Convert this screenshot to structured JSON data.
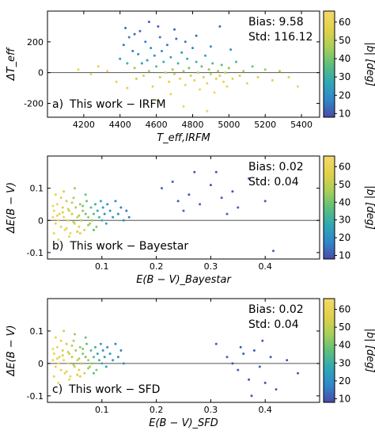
{
  "colorbar": {
    "title": "|b| [deg]",
    "range": [
      8,
      66
    ],
    "ticks": [
      10,
      20,
      30,
      40,
      50,
      60
    ],
    "colormap": [
      "#4a4aa8",
      "#2f86c9",
      "#2fa8b5",
      "#5fbf7a",
      "#a8cf57",
      "#e3d04a",
      "#f3d96b"
    ]
  },
  "chart_data": [
    {
      "type": "scatter",
      "panel_label": "a)",
      "label_text": "This work − IRFM",
      "ylabel": "ΔT_eff",
      "xlabel": "T_eff,IRFM",
      "xlim": [
        4000,
        5500
      ],
      "ylim": [
        -290,
        400
      ],
      "xticks": [
        4200,
        4400,
        4600,
        4800,
        5000,
        5200,
        5400
      ],
      "yticks": [
        -200,
        0,
        200
      ],
      "stats": {
        "bias": "Bias: 9.58",
        "std": "Std: 116.12"
      },
      "points": [
        [
          4170,
          20,
          62
        ],
        [
          4240,
          -10,
          60
        ],
        [
          4280,
          40,
          58
        ],
        [
          4330,
          10,
          61
        ],
        [
          4380,
          -60,
          57
        ],
        [
          4400,
          90,
          22
        ],
        [
          4420,
          180,
          15
        ],
        [
          4430,
          290,
          14
        ],
        [
          4440,
          60,
          30
        ],
        [
          4450,
          230,
          18
        ],
        [
          4470,
          140,
          16
        ],
        [
          4480,
          30,
          45
        ],
        [
          4490,
          -40,
          50
        ],
        [
          4500,
          120,
          19
        ],
        [
          4510,
          270,
          13
        ],
        [
          4520,
          60,
          26
        ],
        [
          4530,
          -20,
          55
        ],
        [
          4540,
          200,
          17
        ],
        [
          4550,
          80,
          24
        ],
        [
          4560,
          10,
          48
        ],
        [
          4570,
          160,
          20
        ],
        [
          4580,
          -90,
          58
        ],
        [
          4590,
          110,
          22
        ],
        [
          4600,
          40,
          35
        ],
        [
          4610,
          300,
          12
        ],
        [
          4620,
          -30,
          52
        ],
        [
          4630,
          140,
          21
        ],
        [
          4640,
          70,
          28
        ],
        [
          4650,
          0,
          50
        ],
        [
          4660,
          180,
          16
        ],
        [
          4670,
          -60,
          56
        ],
        [
          4680,
          100,
          25
        ],
        [
          4690,
          20,
          44
        ],
        [
          4700,
          -10,
          54
        ],
        [
          4710,
          220,
          14
        ],
        [
          4720,
          60,
          32
        ],
        [
          4730,
          -40,
          57
        ],
        [
          4740,
          130,
          23
        ],
        [
          4750,
          10,
          47
        ],
        [
          4760,
          -80,
          60
        ],
        [
          4770,
          90,
          29
        ],
        [
          4780,
          30,
          40
        ],
        [
          4790,
          -20,
          53
        ],
        [
          4800,
          160,
          18
        ],
        [
          4810,
          -50,
          58
        ],
        [
          4820,
          70,
          31
        ],
        [
          4830,
          0,
          49
        ],
        [
          4840,
          -110,
          62
        ],
        [
          4850,
          40,
          38
        ],
        [
          4860,
          -30,
          55
        ],
        [
          4870,
          110,
          26
        ],
        [
          4880,
          -70,
          59
        ],
        [
          4890,
          20,
          43
        ],
        [
          4900,
          -10,
          52
        ],
        [
          4910,
          60,
          34
        ],
        [
          4920,
          -130,
          63
        ],
        [
          4930,
          -40,
          56
        ],
        [
          4940,
          10,
          46
        ],
        [
          4950,
          -20,
          54
        ],
        [
          4960,
          50,
          36
        ],
        [
          4970,
          -60,
          58
        ],
        [
          4980,
          0,
          50
        ],
        [
          4990,
          -90,
          61
        ],
        [
          5000,
          30,
          42
        ],
        [
          5020,
          -40,
          57
        ],
        [
          5040,
          70,
          33
        ],
        [
          5060,
          -20,
          53
        ],
        [
          5080,
          10,
          47
        ],
        [
          5100,
          -70,
          60
        ],
        [
          5130,
          40,
          39
        ],
        [
          5160,
          -30,
          55
        ],
        [
          5200,
          20,
          45
        ],
        [
          5240,
          -50,
          58
        ],
        [
          5280,
          10,
          48
        ],
        [
          5330,
          -30,
          56
        ],
        [
          5380,
          -90,
          62
        ],
        [
          4560,
          330,
          11
        ],
        [
          4480,
          250,
          13
        ],
        [
          4620,
          230,
          15
        ],
        [
          4700,
          280,
          12
        ],
        [
          4760,
          200,
          16
        ],
        [
          4820,
          240,
          14
        ],
        [
          4900,
          170,
          19
        ],
        [
          4950,
          300,
          13
        ],
        [
          5010,
          150,
          21
        ],
        [
          4600,
          -180,
          60
        ],
        [
          4750,
          -220,
          62
        ],
        [
          4880,
          -250,
          63
        ],
        [
          4680,
          -140,
          59
        ],
        [
          4440,
          -100,
          57
        ]
      ]
    },
    {
      "type": "scatter",
      "panel_label": "b)",
      "label_text": "This work − Bayestar",
      "ylabel": "ΔE(B − V)",
      "xlabel": "E(B − V)_Bayestar",
      "xlim": [
        0.0,
        0.5
      ],
      "ylim": [
        -0.12,
        0.2
      ],
      "xticks": [
        0.1,
        0.2,
        0.3,
        0.4
      ],
      "yticks": [
        -0.1,
        0.0,
        0.1
      ],
      "stats": {
        "bias": "Bias: 0.02",
        "std": "Std: 0.04"
      },
      "points": [
        [
          0.01,
          0.01,
          62
        ],
        [
          0.012,
          0.03,
          60
        ],
        [
          0.015,
          -0.01,
          58
        ],
        [
          0.018,
          0.05,
          61
        ],
        [
          0.02,
          0.0,
          63
        ],
        [
          0.022,
          0.02,
          57
        ],
        [
          0.025,
          -0.02,
          59
        ],
        [
          0.028,
          0.04,
          55
        ],
        [
          0.03,
          0.01,
          60
        ],
        [
          0.032,
          -0.03,
          62
        ],
        [
          0.035,
          0.06,
          52
        ],
        [
          0.038,
          0.0,
          58
        ],
        [
          0.04,
          0.03,
          54
        ],
        [
          0.042,
          -0.04,
          61
        ],
        [
          0.045,
          0.02,
          50
        ],
        [
          0.048,
          0.07,
          48
        ],
        [
          0.05,
          -0.01,
          56
        ],
        [
          0.052,
          0.04,
          46
        ],
        [
          0.055,
          0.01,
          53
        ],
        [
          0.058,
          -0.02,
          57
        ],
        [
          0.06,
          0.05,
          44
        ],
        [
          0.062,
          0.0,
          50
        ],
        [
          0.065,
          0.03,
          42
        ],
        [
          0.068,
          -0.03,
          55
        ],
        [
          0.07,
          0.02,
          40
        ],
        [
          0.072,
          0.06,
          38
        ],
        [
          0.075,
          0.01,
          45
        ],
        [
          0.078,
          -0.01,
          47
        ],
        [
          0.08,
          0.04,
          36
        ],
        [
          0.082,
          0.0,
          43
        ],
        [
          0.085,
          0.02,
          34
        ],
        [
          0.088,
          0.05,
          30
        ],
        [
          0.09,
          -0.02,
          41
        ],
        [
          0.092,
          0.03,
          28
        ],
        [
          0.095,
          0.01,
          32
        ],
        [
          0.098,
          0.06,
          26
        ],
        [
          0.1,
          0.0,
          30
        ],
        [
          0.102,
          0.04,
          24
        ],
        [
          0.105,
          0.02,
          22
        ],
        [
          0.108,
          -0.01,
          27
        ],
        [
          0.11,
          0.05,
          20
        ],
        [
          0.115,
          0.03,
          21
        ],
        [
          0.12,
          0.01,
          23
        ],
        [
          0.125,
          0.06,
          18
        ],
        [
          0.13,
          0.02,
          19
        ],
        [
          0.135,
          0.04,
          17
        ],
        [
          0.14,
          0.0,
          20
        ],
        [
          0.145,
          0.03,
          16
        ],
        [
          0.15,
          0.01,
          18
        ],
        [
          0.015,
          0.08,
          58
        ],
        [
          0.02,
          -0.06,
          62
        ],
        [
          0.03,
          0.09,
          52
        ],
        [
          0.04,
          -0.05,
          59
        ],
        [
          0.05,
          0.1,
          45
        ],
        [
          0.06,
          -0.04,
          56
        ],
        [
          0.07,
          0.08,
          39
        ],
        [
          0.025,
          0.07,
          57
        ],
        [
          0.045,
          0.055,
          49
        ],
        [
          0.065,
          0.045,
          41
        ],
        [
          0.085,
          -0.03,
          37
        ],
        [
          0.035,
          -0.025,
          60
        ],
        [
          0.055,
          -0.035,
          54
        ],
        [
          0.075,
          -0.015,
          44
        ],
        [
          0.01,
          0.045,
          63
        ],
        [
          0.012,
          -0.04,
          61
        ],
        [
          0.018,
          0.015,
          60
        ],
        [
          0.028,
          0.025,
          56
        ],
        [
          0.038,
          0.035,
          53
        ],
        [
          0.048,
          -0.005,
          51
        ],
        [
          0.058,
          0.015,
          47
        ],
        [
          0.21,
          0.1,
          12
        ],
        [
          0.24,
          0.06,
          11
        ],
        [
          0.25,
          0.03,
          12
        ],
        [
          0.26,
          0.08,
          10
        ],
        [
          0.27,
          0.15,
          11
        ],
        [
          0.28,
          0.05,
          12
        ],
        [
          0.3,
          0.11,
          10
        ],
        [
          0.32,
          0.07,
          11
        ],
        [
          0.33,
          0.02,
          12
        ],
        [
          0.34,
          0.09,
          10
        ],
        [
          0.35,
          0.04,
          11
        ],
        [
          0.37,
          0.13,
          10
        ],
        [
          0.4,
          0.06,
          11
        ],
        [
          0.415,
          -0.095,
          12
        ],
        [
          0.23,
          0.12,
          11
        ],
        [
          0.31,
          0.15,
          10
        ]
      ]
    },
    {
      "type": "scatter",
      "panel_label": "c)",
      "label_text": "This work − SFD",
      "ylabel": "ΔE(B − V)",
      "xlabel": "E(B − V)_SFD",
      "xlim": [
        0.0,
        0.5
      ],
      "ylim": [
        -0.12,
        0.2
      ],
      "xticks": [
        0.1,
        0.2,
        0.3,
        0.4
      ],
      "yticks": [
        -0.1,
        0.0,
        0.1
      ],
      "stats": {
        "bias": "Bias: 0.02",
        "std": "Std: 0.04"
      },
      "points": [
        [
          0.01,
          0.01,
          62
        ],
        [
          0.012,
          0.03,
          60
        ],
        [
          0.015,
          -0.01,
          58
        ],
        [
          0.018,
          0.05,
          61
        ],
        [
          0.02,
          0.0,
          63
        ],
        [
          0.022,
          0.02,
          57
        ],
        [
          0.025,
          -0.02,
          59
        ],
        [
          0.028,
          0.04,
          55
        ],
        [
          0.03,
          0.01,
          60
        ],
        [
          0.032,
          -0.03,
          62
        ],
        [
          0.035,
          0.06,
          52
        ],
        [
          0.038,
          0.0,
          58
        ],
        [
          0.04,
          0.03,
          54
        ],
        [
          0.042,
          -0.04,
          61
        ],
        [
          0.045,
          0.02,
          50
        ],
        [
          0.048,
          0.07,
          48
        ],
        [
          0.05,
          -0.01,
          56
        ],
        [
          0.052,
          0.04,
          46
        ],
        [
          0.055,
          0.01,
          53
        ],
        [
          0.058,
          -0.02,
          57
        ],
        [
          0.06,
          0.05,
          44
        ],
        [
          0.062,
          0.0,
          50
        ],
        [
          0.065,
          0.03,
          42
        ],
        [
          0.068,
          -0.03,
          55
        ],
        [
          0.07,
          0.02,
          40
        ],
        [
          0.072,
          0.06,
          38
        ],
        [
          0.075,
          0.01,
          45
        ],
        [
          0.078,
          -0.01,
          47
        ],
        [
          0.08,
          0.04,
          36
        ],
        [
          0.082,
          0.0,
          43
        ],
        [
          0.085,
          0.02,
          34
        ],
        [
          0.088,
          0.05,
          30
        ],
        [
          0.09,
          -0.02,
          41
        ],
        [
          0.092,
          0.03,
          28
        ],
        [
          0.095,
          0.01,
          32
        ],
        [
          0.098,
          0.06,
          26
        ],
        [
          0.1,
          0.0,
          30
        ],
        [
          0.102,
          0.04,
          24
        ],
        [
          0.105,
          0.02,
          22
        ],
        [
          0.108,
          -0.01,
          27
        ],
        [
          0.11,
          0.05,
          20
        ],
        [
          0.115,
          0.03,
          21
        ],
        [
          0.12,
          0.01,
          23
        ],
        [
          0.125,
          0.06,
          18
        ],
        [
          0.13,
          0.02,
          19
        ],
        [
          0.135,
          0.04,
          17
        ],
        [
          0.14,
          0.0,
          20
        ],
        [
          0.015,
          0.08,
          58
        ],
        [
          0.02,
          -0.06,
          62
        ],
        [
          0.03,
          0.1,
          52
        ],
        [
          0.04,
          -0.05,
          59
        ],
        [
          0.05,
          0.09,
          45
        ],
        [
          0.06,
          -0.04,
          56
        ],
        [
          0.07,
          0.08,
          39
        ],
        [
          0.025,
          0.07,
          57
        ],
        [
          0.045,
          0.055,
          49
        ],
        [
          0.065,
          0.045,
          41
        ],
        [
          0.085,
          -0.03,
          37
        ],
        [
          0.035,
          -0.025,
          60
        ],
        [
          0.055,
          -0.035,
          54
        ],
        [
          0.075,
          -0.015,
          44
        ],
        [
          0.01,
          0.045,
          63
        ],
        [
          0.012,
          -0.04,
          61
        ],
        [
          0.018,
          0.015,
          60
        ],
        [
          0.028,
          0.025,
          56
        ],
        [
          0.038,
          0.035,
          53
        ],
        [
          0.048,
          -0.005,
          51
        ],
        [
          0.058,
          0.015,
          47
        ],
        [
          0.31,
          0.06,
          11
        ],
        [
          0.33,
          0.02,
          12
        ],
        [
          0.34,
          0.0,
          10
        ],
        [
          0.35,
          -0.02,
          11
        ],
        [
          0.36,
          0.03,
          12
        ],
        [
          0.37,
          -0.05,
          10
        ],
        [
          0.38,
          0.04,
          11
        ],
        [
          0.39,
          -0.01,
          12
        ],
        [
          0.4,
          -0.06,
          10
        ],
        [
          0.41,
          0.02,
          11
        ],
        [
          0.42,
          -0.08,
          12
        ],
        [
          0.44,
          0.01,
          10
        ],
        [
          0.46,
          -0.03,
          11
        ],
        [
          0.355,
          0.05,
          12
        ],
        [
          0.395,
          0.07,
          11
        ],
        [
          0.375,
          -0.1,
          10
        ]
      ]
    }
  ]
}
